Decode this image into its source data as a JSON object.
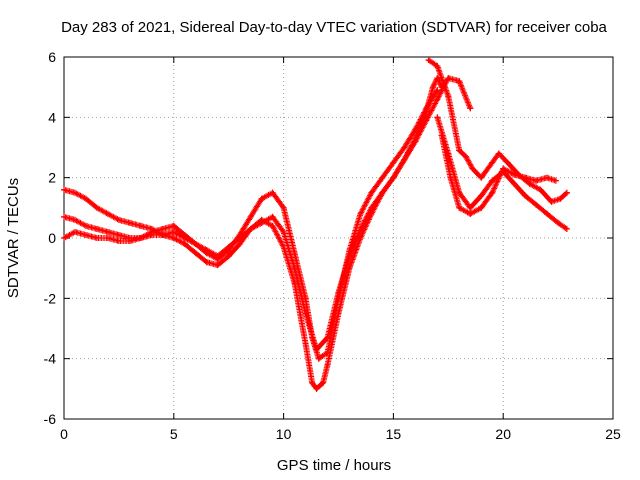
{
  "chart_data": {
    "type": "scatter",
    "title": "Day 283 of 2021, Sidereal Day-to-day VTEC variation (SDTVAR) for receiver coba",
    "xlabel": "GPS time / hours",
    "ylabel": "SDTVAR / TECUs",
    "xlim": [
      0,
      25
    ],
    "ylim": [
      -6,
      6
    ],
    "xticks": [
      "0",
      "5",
      "10",
      "15",
      "20",
      "25"
    ],
    "yticks": [
      "-6",
      "-4",
      "-2",
      "0",
      "2",
      "4",
      "6"
    ],
    "grid": true,
    "marker": "+",
    "color": "#ff0000",
    "series": [
      {
        "x": [
          0.0,
          0.5,
          1.0,
          1.5,
          2.0,
          2.5,
          3.0,
          3.5,
          4.0,
          4.5,
          5.0,
          5.5,
          6.0,
          6.5,
          7.0,
          7.5,
          8.0,
          8.5,
          9.0,
          9.5,
          10.0,
          10.5,
          11.0,
          11.3,
          11.5,
          11.8,
          12.0,
          12.5,
          13.0,
          13.5,
          14.0,
          14.5,
          15.0,
          15.5,
          16.0,
          16.5,
          16.8,
          17.0,
          17.2
        ],
        "y": [
          1.6,
          1.5,
          1.3,
          1.0,
          0.8,
          0.6,
          0.5,
          0.4,
          0.3,
          0.1,
          0.0,
          -0.2,
          -0.5,
          -0.8,
          -0.9,
          -0.6,
          -0.2,
          0.3,
          0.6,
          0.4,
          -0.3,
          -1.5,
          -3.5,
          -4.8,
          -5.0,
          -4.8,
          -4.2,
          -2.5,
          -1.0,
          0.0,
          0.8,
          1.5,
          2.0,
          2.6,
          3.3,
          4.2,
          5.0,
          5.3,
          5.0
        ]
      },
      {
        "x": [
          0.0,
          0.5,
          1.0,
          1.5,
          2.0,
          2.5,
          3.0,
          3.5,
          4.0,
          4.5,
          5.0,
          5.5,
          6.0,
          6.5,
          7.0,
          7.5,
          8.0,
          8.5,
          9.0,
          9.5,
          10.0,
          10.5,
          11.0,
          11.3,
          11.6,
          12.0,
          12.5,
          13.0,
          13.5,
          14.0,
          14.5,
          15.0,
          15.5,
          16.0,
          16.5,
          17.0
        ],
        "y": [
          0.7,
          0.6,
          0.4,
          0.3,
          0.2,
          0.1,
          0.0,
          0.0,
          0.1,
          0.1,
          0.2,
          0.0,
          -0.2,
          -0.5,
          -0.7,
          -0.4,
          0.1,
          0.7,
          1.3,
          1.5,
          1.0,
          -0.5,
          -2.0,
          -3.3,
          -4.0,
          -3.8,
          -2.0,
          -0.4,
          0.8,
          1.5,
          2.0,
          2.5,
          3.0,
          3.6,
          4.3,
          4.9
        ]
      },
      {
        "x": [
          0.0,
          0.5,
          1.0,
          1.5,
          2.0,
          2.5,
          3.0,
          3.5,
          4.0,
          4.5,
          5.0,
          5.5,
          6.0,
          6.5,
          7.0,
          7.5,
          8.0,
          8.5,
          9.0,
          9.5,
          10.0,
          10.5,
          11.0,
          11.5,
          12.0,
          12.5,
          13.0,
          13.5,
          14.0,
          14.5,
          15.0,
          15.5,
          16.0,
          16.5,
          17.0,
          17.5,
          18.0,
          18.5
        ],
        "y": [
          0.0,
          0.2,
          0.1,
          0.0,
          0.0,
          -0.1,
          -0.1,
          0.0,
          0.2,
          0.3,
          0.4,
          0.1,
          -0.2,
          -0.4,
          -0.6,
          -0.3,
          0.0,
          0.3,
          0.5,
          0.7,
          0.2,
          -1.0,
          -2.5,
          -3.7,
          -3.3,
          -1.8,
          -0.6,
          0.3,
          1.0,
          1.5,
          2.0,
          2.6,
          3.2,
          3.9,
          4.6,
          5.3,
          5.2,
          4.3
        ]
      },
      {
        "x": [
          16.6,
          17.0,
          17.5,
          18.0,
          18.3,
          18.6,
          19.0,
          19.5,
          19.8,
          20.2,
          20.7,
          21.2,
          21.7,
          22.2,
          22.6,
          22.9
        ],
        "y": [
          5.9,
          5.7,
          4.7,
          2.9,
          2.7,
          2.3,
          2.0,
          2.5,
          2.8,
          2.5,
          2.1,
          1.8,
          1.6,
          1.2,
          1.3,
          1.5
        ]
      },
      {
        "x": [
          17.0,
          17.5,
          18.0,
          18.5,
          19.0,
          19.5,
          20.0,
          20.5,
          21.0,
          21.5,
          22.0,
          22.5,
          22.9
        ],
        "y": [
          4.0,
          2.8,
          1.5,
          1.0,
          1.4,
          1.9,
          2.2,
          1.8,
          1.4,
          1.1,
          0.8,
          0.5,
          0.3
        ]
      },
      {
        "x": [
          17.2,
          17.6,
          18.0,
          18.5,
          19.0,
          19.5,
          20.0,
          20.5,
          21.0,
          21.5,
          22.0,
          22.4
        ],
        "y": [
          3.4,
          2.0,
          1.0,
          0.8,
          1.0,
          1.5,
          2.3,
          2.1,
          2.0,
          1.9,
          2.0,
          1.9
        ]
      }
    ]
  }
}
